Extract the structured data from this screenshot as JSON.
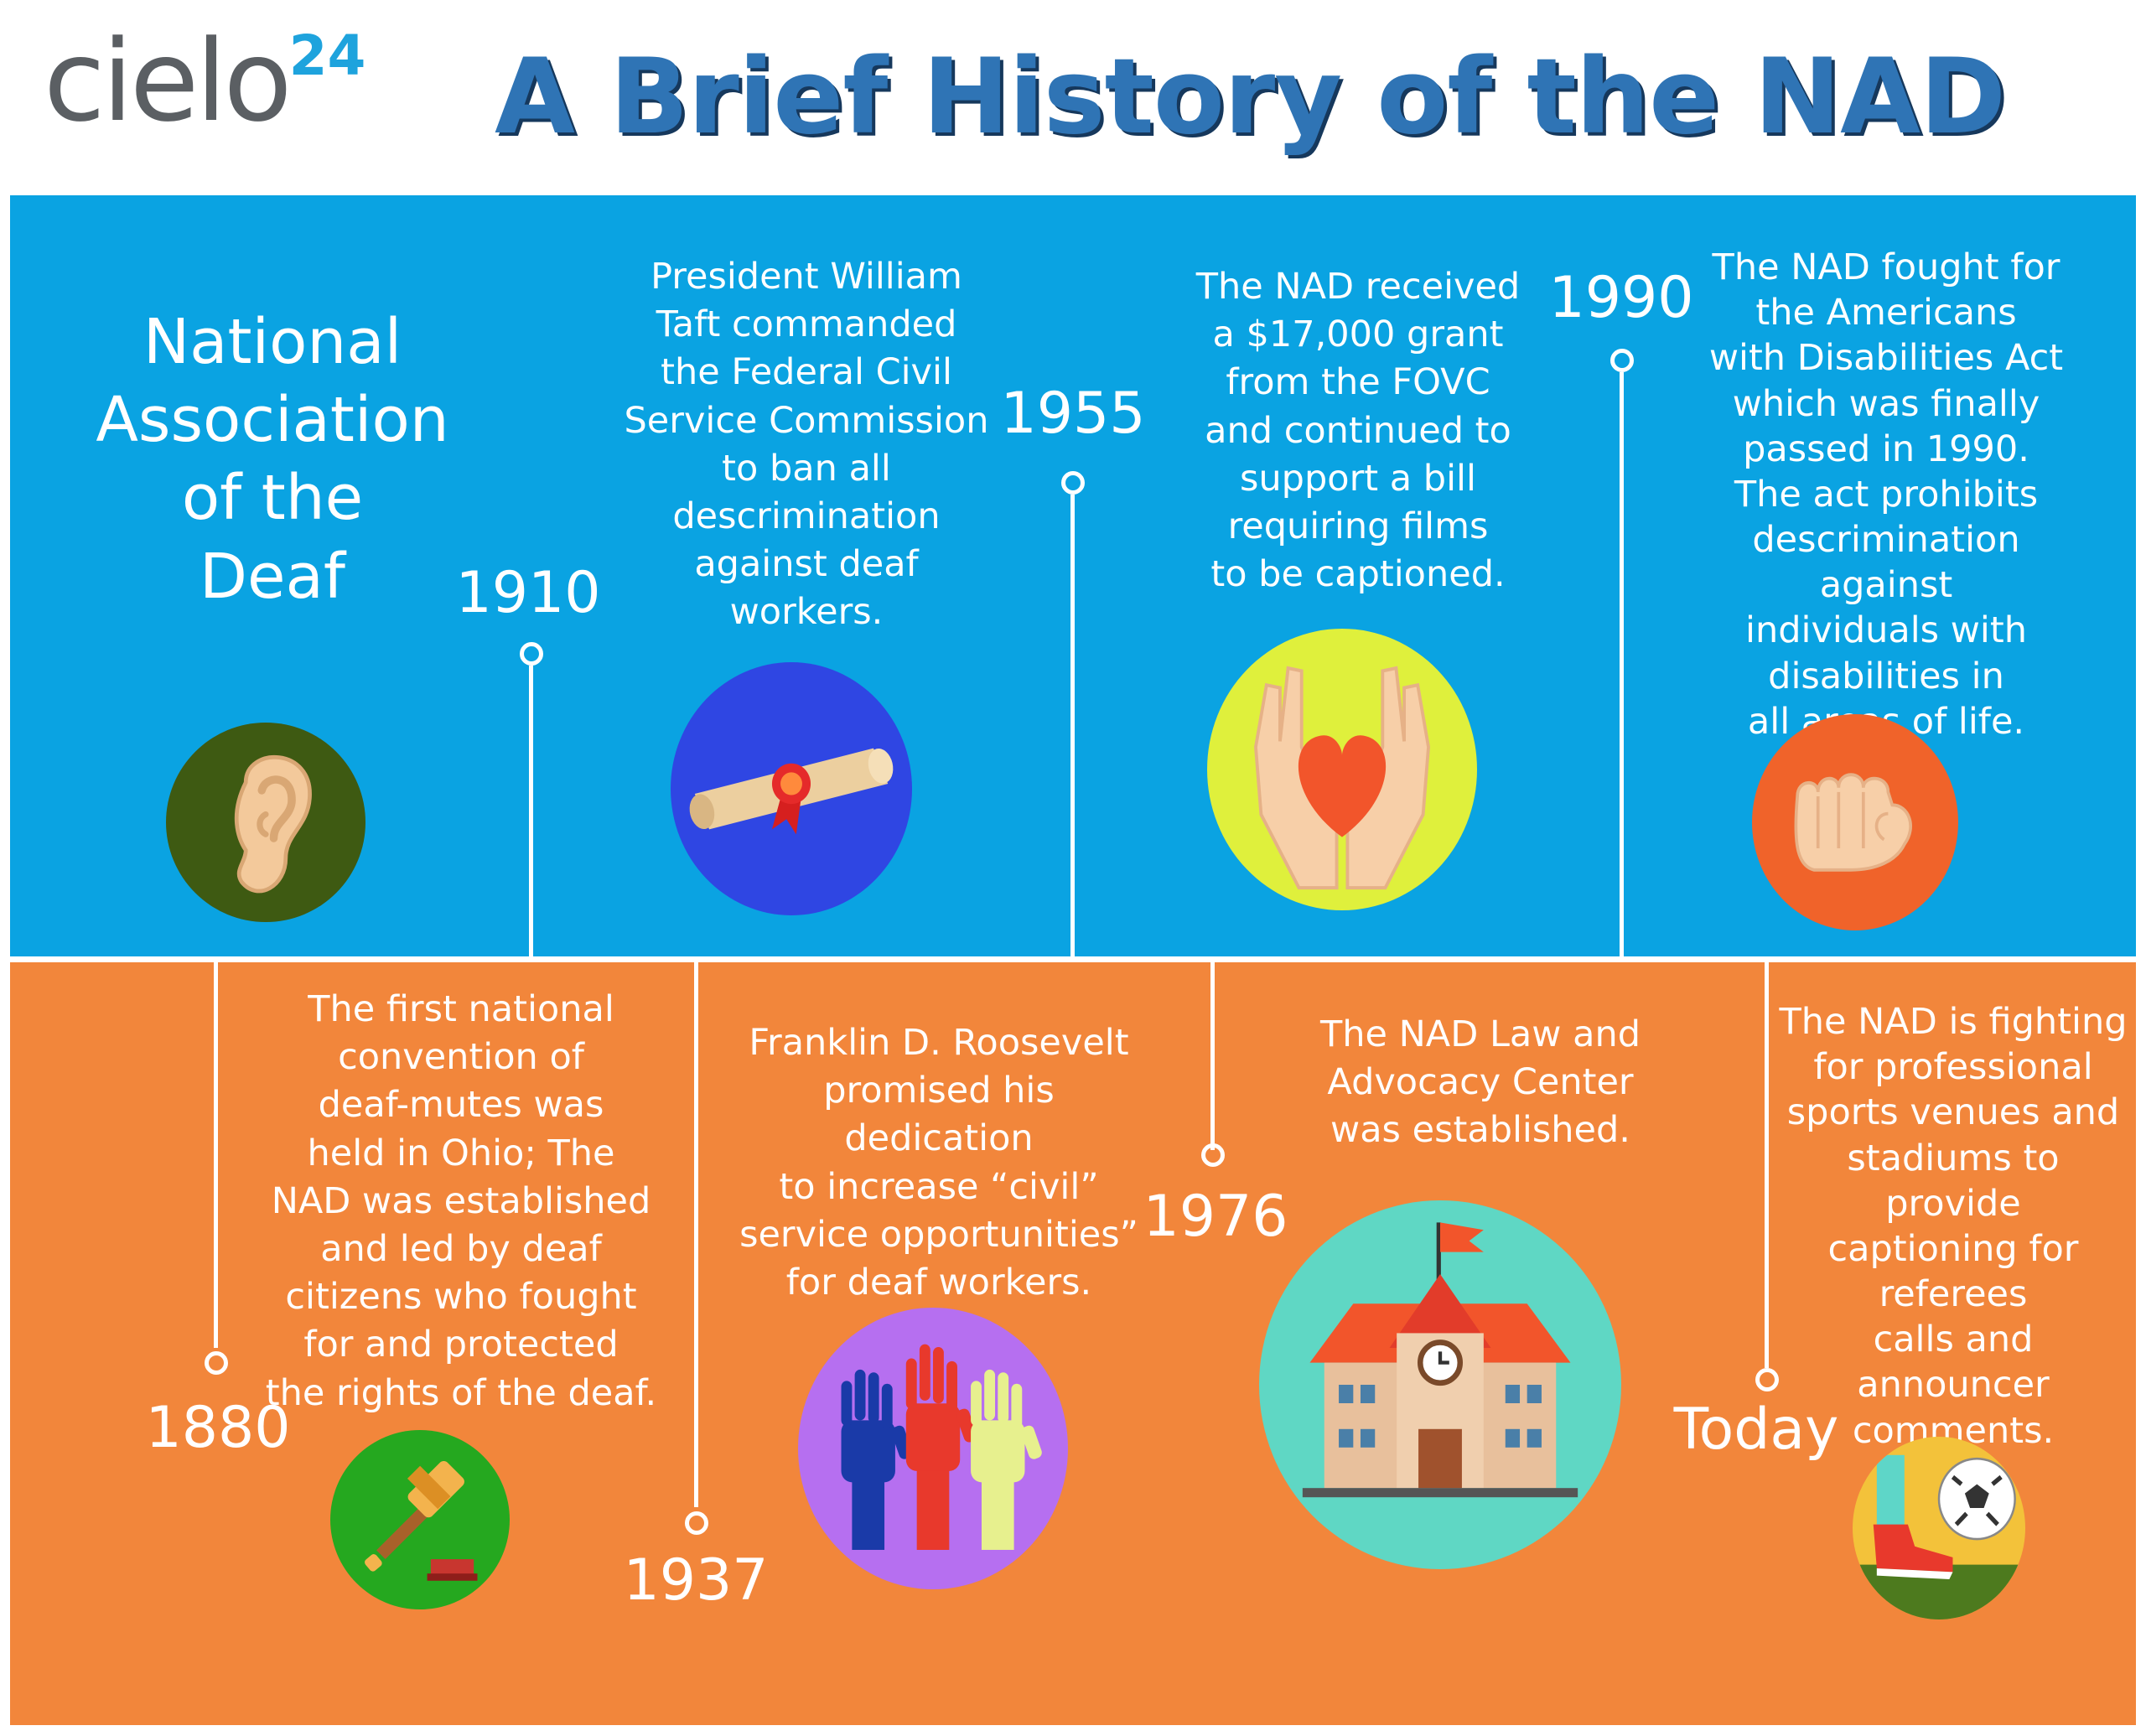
{
  "header": {
    "logo_text": "cielo",
    "logo_superscript": "24",
    "title": "A Brief History of the NAD"
  },
  "colors": {
    "top_band": "#0aa3e2",
    "bottom_band": "#f2863b",
    "title": "#2f74b5",
    "logo_grey": "#5b5f63",
    "logo_blue": "#1ea3dd"
  },
  "intro": {
    "lines": [
      "National",
      "Association",
      "of the",
      "Deaf"
    ]
  },
  "events": [
    {
      "year": "1880",
      "lines": [
        "The first national",
        "convention of",
        "deaf-mutes was",
        "held in Ohio; The",
        "NAD was established",
        "and led by deaf",
        "citizens who fought",
        "for and protected",
        "the rights of the  deaf."
      ],
      "icon": "gavel-icon"
    },
    {
      "year": "1910",
      "lines": [
        "President William",
        "Taft commanded",
        "the Federal Civil",
        "Service Commission",
        "to ban all",
        "descrimination",
        "against deaf",
        "workers."
      ],
      "icon": "diploma-scroll-icon"
    },
    {
      "year": "1937",
      "lines": [
        "Franklin D. Roosevelt",
        "promised his dedication",
        "to increase “civil”",
        "service opportunities”",
        "for deaf workers."
      ],
      "icon": "raised-hands-icon"
    },
    {
      "year": "1955",
      "lines": [
        "The NAD received",
        "a $17,000 grant",
        "from the FOVC",
        "and continued to",
        "support a bill",
        "requiring films",
        "to be captioned."
      ],
      "icon": "heart-in-hands-icon"
    },
    {
      "year": "1976",
      "lines": [
        "The NAD Law and",
        "Advocacy Center",
        "was established."
      ],
      "icon": "school-building-icon"
    },
    {
      "year": "1990",
      "lines": [
        "The NAD fought for",
        "the Americans",
        "with Disabilities Act",
        "which was finally",
        "passed in 1990.",
        "The act prohibits",
        "descrimination against",
        "individuals with",
        "disabilities  in",
        "all areas of life."
      ],
      "icon": "fist-icon"
    },
    {
      "year": "Today",
      "lines": [
        "The NAD is fighting",
        "for professional",
        "sports venues and",
        "stadiums to provide",
        "captioning for",
        "referees",
        "calls and",
        "announcer",
        "comments."
      ],
      "icon": "soccer-kick-icon"
    }
  ]
}
